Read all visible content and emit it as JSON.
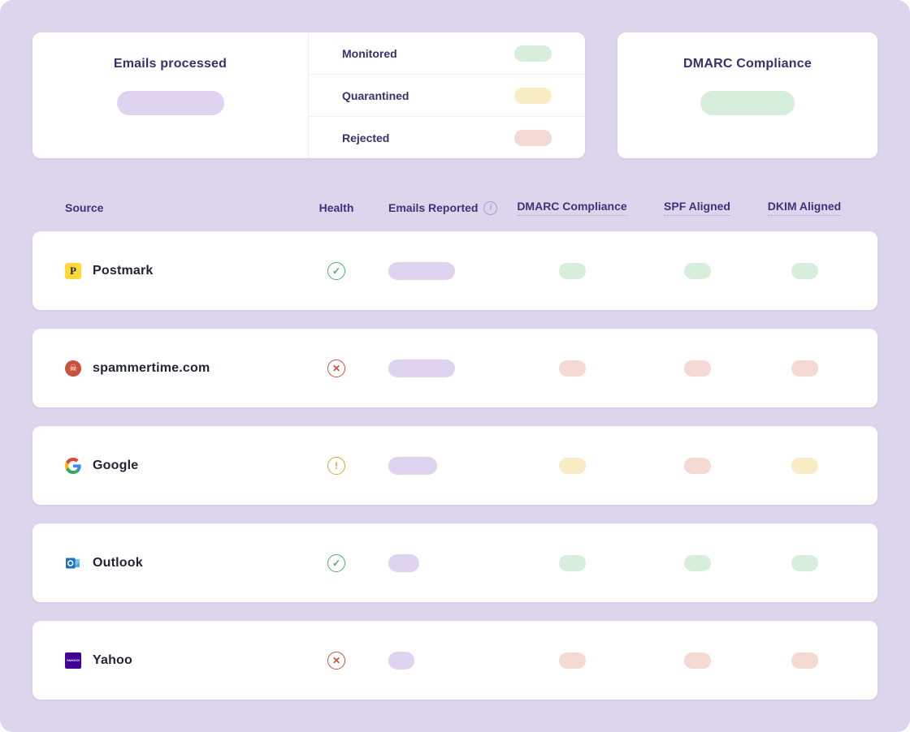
{
  "page": {
    "background": "#dcd5eb"
  },
  "summary": {
    "emails_processed": {
      "title": "Emails processed",
      "pill_color": "#ded4ef"
    },
    "legend": [
      {
        "label": "Monitored",
        "pill_color": "#d7eedd"
      },
      {
        "label": "Quarantined",
        "pill_color": "#f8ecc4"
      },
      {
        "label": "Rejected",
        "pill_color": "#f4dad3"
      }
    ],
    "dmarc_compliance": {
      "title": "DMARC Compliance",
      "pill_color": "#d7eedd"
    }
  },
  "table": {
    "header": {
      "source": "Source",
      "health": "Health",
      "emails_reported": "Emails Reported",
      "emails_reported_info_icon": "i",
      "dmarc": "DMARC Compliance",
      "spf": "SPF Aligned",
      "dkim": "DKIM Aligned"
    },
    "rows": [
      {
        "source": "Postmark",
        "icon": "postmark-icon",
        "icon_label": "P",
        "health": "ok",
        "emails_width": 82,
        "dmarc": "pass",
        "spf": "pass",
        "dkim": "pass"
      },
      {
        "source": "spammertime.com",
        "icon": "spam-skull-icon",
        "icon_label": "☠",
        "health": "fail",
        "emails_width": 82,
        "dmarc": "fail",
        "spf": "fail",
        "dkim": "fail"
      },
      {
        "source": "Google",
        "icon": "google-icon",
        "icon_label": "",
        "health": "warn",
        "emails_width": 60,
        "dmarc": "partial",
        "spf": "fail",
        "dkim": "partial"
      },
      {
        "source": "Outlook",
        "icon": "outlook-icon",
        "icon_label": "",
        "health": "ok",
        "emails_width": 38,
        "dmarc": "pass",
        "spf": "pass",
        "dkim": "pass"
      },
      {
        "source": "Yahoo",
        "icon": "yahoo-icon",
        "icon_label": "YAHOO!",
        "health": "fail",
        "emails_width": 32,
        "dmarc": "fail",
        "spf": "fail",
        "dkim": "fail"
      }
    ]
  },
  "colors": {
    "emails_pill": "#ded4ef",
    "status": {
      "pass": "#d7eedd",
      "partial": "#f8ecc4",
      "fail": "#f4dad3"
    },
    "health": {
      "ok": {
        "glyph": "✓",
        "color": "#4daf6b"
      },
      "warn": {
        "glyph": "!",
        "color": "#dfa43a"
      },
      "fail": {
        "glyph": "✕",
        "color": "#c8523e"
      }
    }
  }
}
